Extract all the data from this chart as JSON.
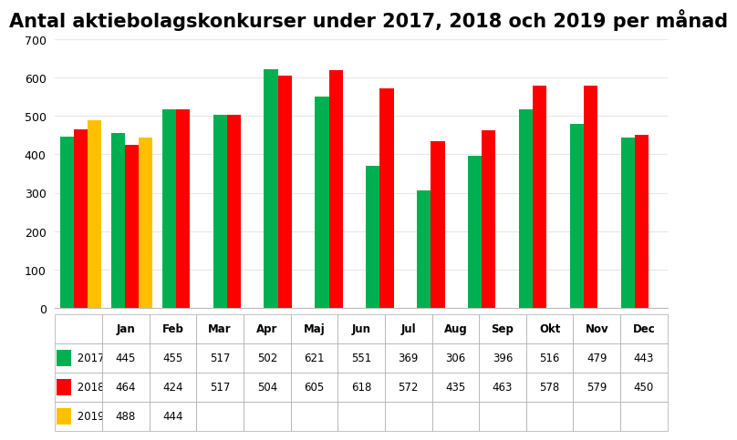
{
  "title": "Antal aktiebolagskonkurser under 2017, 2018 och 2019 per månad",
  "months": [
    "Jan",
    "Feb",
    "Mar",
    "Apr",
    "Maj",
    "Jun",
    "Jul",
    "Aug",
    "Sep",
    "Okt",
    "Nov",
    "Dec"
  ],
  "series": {
    "2017": [
      445,
      455,
      517,
      502,
      621,
      551,
      369,
      306,
      396,
      516,
      479,
      443
    ],
    "2018": [
      464,
      424,
      517,
      504,
      605,
      618,
      572,
      435,
      463,
      578,
      579,
      450
    ],
    "2019": [
      488,
      444,
      null,
      null,
      null,
      null,
      null,
      null,
      null,
      null,
      null,
      null
    ]
  },
  "colors": {
    "2017": "#00B050",
    "2018": "#FF0000",
    "2019": "#FFC000"
  },
  "ylim": [
    0,
    700
  ],
  "yticks": [
    0,
    100,
    200,
    300,
    400,
    500,
    600,
    700
  ],
  "title_fontsize": 15,
  "tick_fontsize": 9,
  "bar_width": 0.27,
  "background_color": "#FFFFFF",
  "grid_color": "#E8E8E8",
  "table_fontsize": 8.5,
  "years": [
    "2017",
    "2018",
    "2019"
  ]
}
